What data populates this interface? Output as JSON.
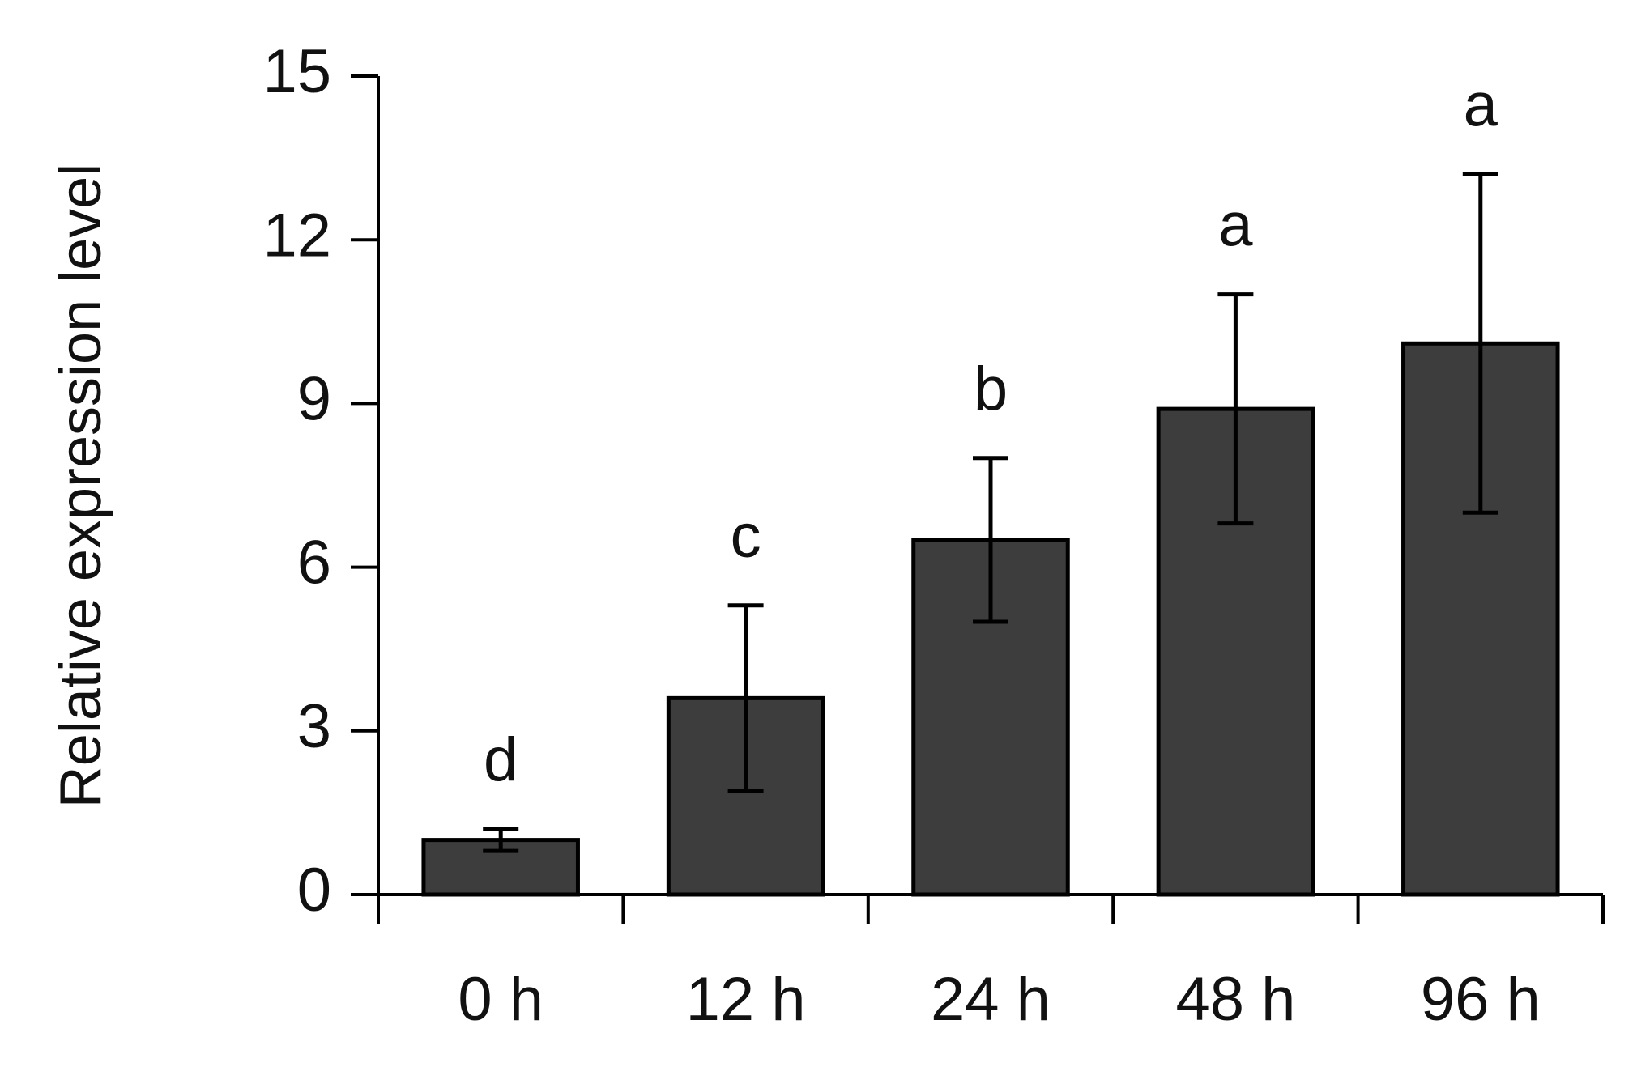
{
  "chart_data": {
    "type": "bar",
    "y_label": "Relative expression level",
    "categories": [
      "0 h",
      "12 h",
      "24 h",
      "48 h",
      "96 h"
    ],
    "values": [
      1.0,
      3.6,
      6.5,
      8.9,
      10.1
    ],
    "errors": [
      0.2,
      1.7,
      1.5,
      2.1,
      3.1
    ],
    "annotations": [
      "d",
      "c",
      "b",
      "a",
      "a"
    ],
    "color": "#3d3d3d",
    "ylim": [
      0,
      15
    ],
    "yticks": [
      0,
      3,
      6,
      9,
      12,
      15
    ],
    "grid": false
  }
}
